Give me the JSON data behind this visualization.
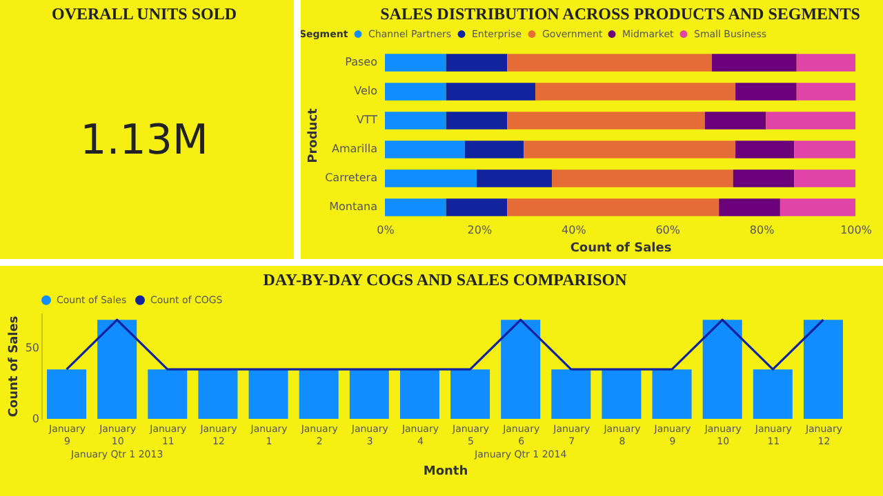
{
  "chart_data": [
    {
      "type": "other",
      "title": "OVERALL UNITS SOLD",
      "annotations": [
        "1.13M"
      ]
    },
    {
      "type": "bar",
      "title": "SALES DISTRIBUTION ACROSS PRODUCTS AND SEGMENTS",
      "orientation": "horizontal",
      "stacked": true,
      "legend": "top left",
      "legend_title": "Segment",
      "xlabel": "Count of Sales",
      "ylabel": "Product",
      "grid": false,
      "categories": [
        "Paseo",
        "Velo",
        "VTT",
        "Amarilla",
        "Carretera",
        "Montana"
      ],
      "xlim": [
        0,
        100
      ],
      "xticks": [
        {
          "value": 0,
          "label": "0%"
        },
        {
          "value": 20,
          "label": "20%"
        },
        {
          "value": 40,
          "label": "40%"
        },
        {
          "value": 60,
          "label": "60%"
        },
        {
          "value": 80,
          "label": "80%"
        },
        {
          "value": 100,
          "label": "100%"
        }
      ],
      "series": [
        {
          "name": "Channel Partners",
          "color": "#118dff",
          "values": [
            13,
            13,
            13,
            17,
            19.5,
            13
          ]
        },
        {
          "name": "Enterprise",
          "color": "#12239e",
          "values": [
            13,
            19,
            13,
            12.5,
            16,
            13
          ]
        },
        {
          "name": "Government",
          "color": "#e66c37",
          "values": [
            43.5,
            42.5,
            42,
            45,
            38.5,
            45
          ]
        },
        {
          "name": "Midmarket",
          "color": "#6b007b",
          "values": [
            18,
            13,
            13,
            12.5,
            13,
            13
          ]
        },
        {
          "name": "Small Business",
          "color": "#e044a7",
          "values": [
            12.5,
            12.5,
            19,
            13,
            13,
            16
          ]
        }
      ]
    },
    {
      "type": "bar",
      "title": "DAY-BY-DAY COGS AND SALES COMPARISON",
      "legend": "top left",
      "xlabel": "Month",
      "ylabel": "Count of Sales",
      "grid": false,
      "categories": [
        "January 9",
        "January 10",
        "January 11",
        "January 12",
        "January 1",
        "January 2",
        "January 3",
        "January 4",
        "January 5",
        "January 6",
        "January 7",
        "January 8",
        "January 9",
        "January 10",
        "January 11",
        "January 12"
      ],
      "ylim": [
        0,
        75
      ],
      "yticks": [
        0,
        50
      ],
      "annotations": [
        "January Qtr 1 2013",
        "January Qtr 1 2014"
      ],
      "series": [
        {
          "name": "Count of Sales",
          "type": "bar",
          "color": "#118dff",
          "values": [
            35,
            70,
            35,
            35,
            35,
            35,
            35,
            35,
            35,
            70,
            35,
            35,
            35,
            70,
            35,
            70
          ]
        },
        {
          "name": "Count of COGS",
          "type": "line",
          "color": "#12239e",
          "values": [
            35,
            70,
            35,
            35,
            35,
            35,
            35,
            35,
            35,
            70,
            35,
            35,
            35,
            70,
            35,
            70
          ]
        }
      ]
    }
  ]
}
